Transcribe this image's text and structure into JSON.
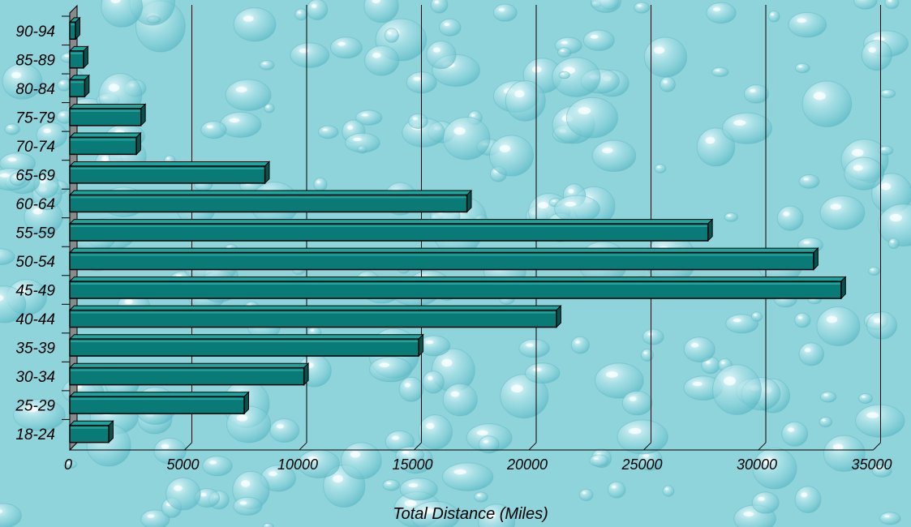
{
  "chart_data": {
    "type": "bar",
    "orientation": "horizontal",
    "style": "3d",
    "categories": [
      "18-24",
      "25-29",
      "30-34",
      "35-39",
      "40-44",
      "45-49",
      "50-54",
      "55-59",
      "60-64",
      "65-69",
      "70-74",
      "75-79",
      "80-84",
      "85-89",
      "90-94"
    ],
    "values": [
      1700,
      7600,
      10200,
      15200,
      21200,
      33600,
      32400,
      27800,
      17300,
      8500,
      2900,
      3100,
      650,
      600,
      250
    ],
    "xlim": [
      0,
      35000
    ],
    "xticks": [
      0,
      5000,
      10000,
      15000,
      20000,
      25000,
      30000,
      35000
    ],
    "xlabel": "Total Distance (Miles)",
    "ylabel": "",
    "title": "",
    "grid": "vertical",
    "legend": "none",
    "colors": {
      "bar_front": "#0a7a76",
      "bar_top": "#1fa39d",
      "bar_side": "#05524f",
      "outline": "#000000",
      "grid": "#000000",
      "wall": "#8a8a8a",
      "background": "#8fd3db"
    }
  }
}
